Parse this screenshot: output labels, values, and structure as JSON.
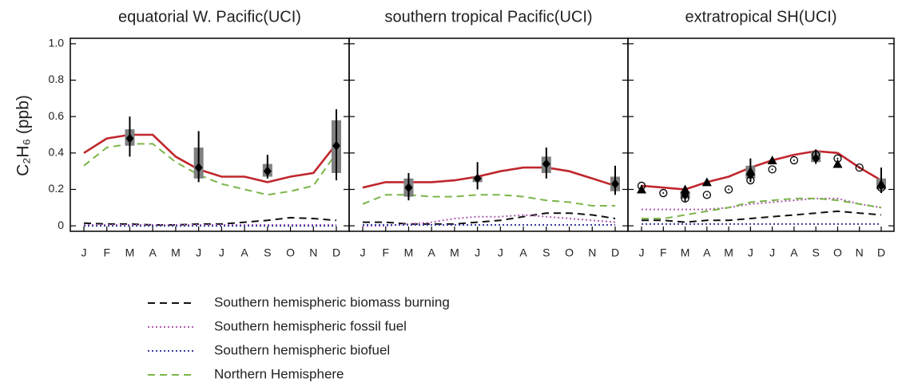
{
  "chart_data": [
    {
      "type": "line",
      "title": "equatorial W. Pacific(UCI)",
      "ylabel": "C₂H₆ (ppb)",
      "categories": [
        "J",
        "F",
        "M",
        "A",
        "M",
        "J",
        "J",
        "A",
        "S",
        "O",
        "N",
        "D"
      ],
      "ylim": [
        -0.03,
        1.03
      ],
      "yticks": [
        0,
        0.2,
        0.4,
        0.6,
        0.8,
        {
          "value": 1,
          "label": "1.0"
        }
      ],
      "series": [
        {
          "color": "#c0272d",
          "style": "solid",
          "values": [
            0.4,
            0.48,
            0.5,
            0.5,
            0.38,
            0.31,
            0.27,
            0.27,
            0.24,
            0.27,
            0.29,
            0.45
          ]
        },
        {
          "name": "Southern hemispheric biomass burning",
          "color": "#111111",
          "style": "dashed",
          "values": [
            0.015,
            0.01,
            0.01,
            0.005,
            0.005,
            0.01,
            0.01,
            0.02,
            0.03,
            0.045,
            0.04,
            0.03
          ]
        },
        {
          "name": "Southern hemispheric fossil fuel",
          "color": "#b05cb0",
          "style": "dotted",
          "values": [
            0.005,
            0.005,
            0.005,
            0.005,
            0.005,
            0.005,
            0.005,
            0.005,
            0.005,
            0.005,
            0.005,
            0.005
          ]
        },
        {
          "name": "Southern hemispheric biofuel",
          "color": "#3a3aa0",
          "style": "dotted",
          "values": [
            0,
            0,
            0,
            0,
            0,
            0,
            0,
            0,
            0,
            0,
            0,
            0
          ]
        },
        {
          "name": "Northern Hemisphere",
          "color": "#7ab648",
          "style": "dashed",
          "values": [
            0.33,
            0.43,
            0.45,
            0.45,
            0.35,
            0.28,
            0.23,
            0.2,
            0.17,
            0.19,
            0.22,
            0.4
          ]
        }
      ],
      "observations": {
        "values": [
          null,
          null,
          0.48,
          null,
          null,
          0.32,
          null,
          null,
          0.3,
          null,
          null,
          0.44
        ],
        "err_low": [
          null,
          null,
          0.38,
          null,
          null,
          0.24,
          null,
          null,
          0.26,
          null,
          null,
          0.25
        ],
        "err_high": [
          null,
          null,
          0.6,
          null,
          null,
          0.52,
          null,
          null,
          0.39,
          null,
          null,
          0.64
        ],
        "box_low": [
          null,
          null,
          0.44,
          null,
          null,
          0.26,
          null,
          null,
          0.27,
          null,
          null,
          0.29
        ],
        "box_high": [
          null,
          null,
          0.53,
          null,
          null,
          0.43,
          null,
          null,
          0.34,
          null,
          null,
          0.58
        ]
      }
    },
    {
      "type": "line",
      "title": "southern tropical Pacific(UCI)",
      "categories": [
        "J",
        "F",
        "M",
        "A",
        "M",
        "J",
        "J",
        "A",
        "S",
        "O",
        "N",
        "D"
      ],
      "ylim": [
        -0.03,
        1.03
      ],
      "series": [
        {
          "color": "#c0272d",
          "style": "solid",
          "values": [
            0.21,
            0.24,
            0.24,
            0.24,
            0.25,
            0.27,
            0.3,
            0.32,
            0.32,
            0.3,
            0.26,
            0.22
          ]
        },
        {
          "color": "#111111",
          "style": "dashed",
          "values": [
            0.02,
            0.02,
            0.01,
            0.01,
            0.01,
            0.02,
            0.03,
            0.05,
            0.07,
            0.07,
            0.06,
            0.04
          ]
        },
        {
          "color": "#b05cb0",
          "style": "dotted",
          "values": [
            0,
            0,
            0.01,
            0.02,
            0.04,
            0.05,
            0.05,
            0.06,
            0.05,
            0.04,
            0.03,
            0.02
          ]
        },
        {
          "color": "#3a3aa0",
          "style": "dotted",
          "values": [
            0.005,
            0.005,
            0.005,
            0.005,
            0.005,
            0.005,
            0.005,
            0.005,
            0.005,
            0.005,
            0.005,
            0.005
          ]
        },
        {
          "color": "#7ab648",
          "style": "dashed",
          "values": [
            0.12,
            0.17,
            0.17,
            0.16,
            0.16,
            0.17,
            0.17,
            0.16,
            0.14,
            0.13,
            0.11,
            0.11
          ]
        }
      ],
      "observations": {
        "values": [
          null,
          null,
          0.21,
          null,
          null,
          0.26,
          null,
          null,
          0.34,
          null,
          null,
          0.23
        ],
        "err_low": [
          null,
          null,
          0.14,
          null,
          null,
          0.2,
          null,
          null,
          0.26,
          null,
          null,
          0.17
        ],
        "err_high": [
          null,
          null,
          0.29,
          null,
          null,
          0.35,
          null,
          null,
          0.43,
          null,
          null,
          0.33
        ],
        "box_low": [
          null,
          null,
          0.16,
          null,
          null,
          0.24,
          null,
          null,
          0.29,
          null,
          null,
          0.19
        ],
        "box_high": [
          null,
          null,
          0.26,
          null,
          null,
          0.27,
          null,
          null,
          0.38,
          null,
          null,
          0.27
        ]
      }
    },
    {
      "type": "line",
      "title": "extratropical SH(UCI)",
      "categories": [
        "J",
        "F",
        "M",
        "A",
        "M",
        "J",
        "J",
        "A",
        "S",
        "O",
        "N",
        "D"
      ],
      "ylim": [
        -0.03,
        1.03
      ],
      "series": [
        {
          "color": "#c0272d",
          "style": "solid",
          "values": [
            0.22,
            0.21,
            0.2,
            0.24,
            0.27,
            0.32,
            0.36,
            0.39,
            0.41,
            0.4,
            0.32,
            0.25
          ]
        },
        {
          "color": "#111111",
          "style": "dashed",
          "values": [
            0.03,
            0.03,
            0.02,
            0.03,
            0.03,
            0.04,
            0.05,
            0.06,
            0.07,
            0.08,
            0.07,
            0.06
          ]
        },
        {
          "color": "#b05cb0",
          "style": "dotted",
          "values": [
            0.09,
            0.09,
            0.09,
            0.09,
            0.1,
            0.12,
            0.13,
            0.14,
            0.15,
            0.15,
            0.12,
            0.1
          ]
        },
        {
          "color": "#3a3aa0",
          "style": "dotted",
          "values": [
            0.01,
            0.01,
            0.01,
            0.01,
            0.01,
            0.01,
            0.01,
            0.01,
            0.01,
            0.01,
            0.01,
            0.01
          ]
        },
        {
          "color": "#7ab648",
          "style": "dashed",
          "values": [
            0.04,
            0.04,
            0.06,
            0.08,
            0.1,
            0.13,
            0.14,
            0.15,
            0.15,
            0.14,
            0.12,
            0.1
          ]
        }
      ],
      "observations": {
        "values": [
          null,
          null,
          0.17,
          null,
          null,
          0.28,
          null,
          null,
          0.37,
          null,
          null,
          0.22
        ],
        "err_low": [
          null,
          null,
          0.13,
          null,
          null,
          0.24,
          null,
          null,
          0.34,
          null,
          null,
          0.18
        ],
        "err_high": [
          null,
          null,
          0.22,
          null,
          null,
          0.37,
          null,
          null,
          0.42,
          null,
          null,
          0.32
        ],
        "box_low": [
          null,
          null,
          0.15,
          null,
          null,
          0.26,
          null,
          null,
          0.35,
          null,
          null,
          0.2
        ],
        "box_high": [
          null,
          null,
          0.19,
          null,
          null,
          0.33,
          null,
          null,
          0.41,
          null,
          null,
          0.26
        ]
      },
      "triangles": [
        0.2,
        null,
        0.2,
        0.24,
        null,
        0.3,
        0.36,
        null,
        null,
        0.34,
        null,
        0.23
      ],
      "circles": [
        0.22,
        0.18,
        0.15,
        0.17,
        0.2,
        0.25,
        0.31,
        0.36,
        0.39,
        0.37,
        0.32,
        0.21
      ]
    }
  ]
}
